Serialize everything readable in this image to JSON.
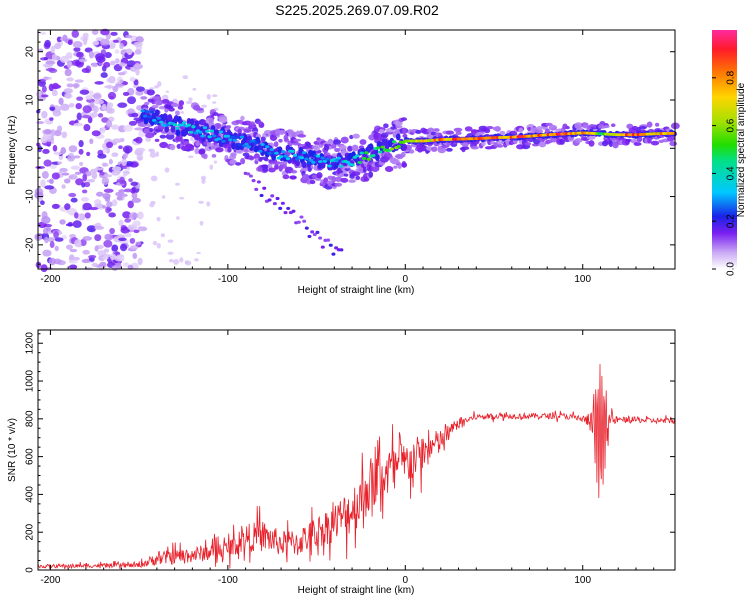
{
  "title": "S225.2025.269.07.09.R02",
  "colors": {
    "snr_line": "#e8202a",
    "spectrum_core": "#7a1ff0",
    "spectrum_halo": "#d6b8f5",
    "axis": "#000000"
  },
  "chart_data": [
    {
      "type": "heatmap",
      "title": "S225.2025.269.07.09.R02",
      "xlabel": "Height of straight line (km)",
      "ylabel": "Frequency (Hz)",
      "xlim": [
        -207,
        152
      ],
      "ylim": [
        -25,
        24.5
      ],
      "xticks": [
        -200,
        -100,
        0,
        100
      ],
      "yticks": [
        -20,
        -10,
        0,
        10,
        20
      ],
      "colorbar": {
        "label": "Normalized spectral amplitude",
        "range": [
          0,
          1
        ],
        "ticks": [
          0.0,
          0.2,
          0.4,
          0.6,
          0.8
        ],
        "tick_labels": [
          "0.0",
          "0.2",
          "0.4",
          "0.6",
          "0.8"
        ]
      },
      "ridge": {
        "x": [
          -145,
          -135,
          -125,
          -115,
          -105,
          -95,
          -85,
          -75,
          -65,
          -55,
          -45,
          -35,
          -25,
          -15,
          -5,
          0,
          10,
          20,
          30,
          40,
          50,
          60,
          70,
          80,
          90,
          100,
          110,
          120,
          130,
          140,
          150
        ],
        "freq": [
          7,
          5,
          4.5,
          3.5,
          2.5,
          1.8,
          1,
          -1,
          -1.5,
          -2,
          -3,
          -3,
          -2,
          -0.5,
          1,
          1.5,
          1.5,
          1.8,
          1.9,
          2,
          2.2,
          2.3,
          2.5,
          2.8,
          3,
          3.2,
          3,
          2.8,
          2.8,
          3,
          3.1
        ],
        "amplitude": [
          0.3,
          0.35,
          0.4,
          0.35,
          0.35,
          0.3,
          0.3,
          0.3,
          0.35,
          0.3,
          0.35,
          0.4,
          0.5,
          0.55,
          0.6,
          0.65,
          0.75,
          0.85,
          0.9,
          0.9,
          0.85,
          0.9,
          0.95,
          0.9,
          0.95,
          0.85,
          0.6,
          0.85,
          0.9,
          0.85,
          0.8
        ]
      },
      "noise_region": {
        "x_range": [
          -207,
          -148
        ],
        "freq_range": [
          -25,
          24.5
        ]
      }
    },
    {
      "type": "line",
      "xlabel": "Height of straight line (km)",
      "ylabel": "SNR (10 * v/v)",
      "xlim": [
        -207,
        152
      ],
      "ylim": [
        0,
        1270
      ],
      "xticks": [
        -200,
        -100,
        0,
        100
      ],
      "yticks": [
        0,
        200,
        400,
        600,
        800,
        1000,
        1200
      ],
      "series": [
        {
          "name": "SNR",
          "envelope": {
            "x": [
              -207,
              -150,
              -140,
              -120,
              -100,
              -90,
              -80,
              -70,
              -60,
              -50,
              -40,
              -30,
              -20,
              -10,
              0,
              10,
              20,
              30,
              40,
              50,
              60,
              70,
              80,
              90,
              100,
              105,
              108,
              110,
              112,
              115,
              120,
              130,
              140,
              152
            ],
            "mean": [
              20,
              25,
              60,
              80,
              110,
              170,
              180,
              140,
              150,
              200,
              250,
              320,
              450,
              520,
              560,
              620,
              680,
              780,
              810,
              815,
              815,
              815,
              815,
              815,
              800,
              780,
              760,
              740,
              780,
              790,
              795,
              795,
              790,
              790
            ],
            "spread": [
              15,
              20,
              60,
              70,
              80,
              120,
              140,
              110,
              120,
              140,
              170,
              220,
              250,
              220,
              200,
              170,
              110,
              40,
              25,
              25,
              25,
              25,
              25,
              25,
              30,
              100,
              300,
              420,
              250,
              60,
              25,
              25,
              25,
              25
            ]
          }
        }
      ]
    }
  ]
}
